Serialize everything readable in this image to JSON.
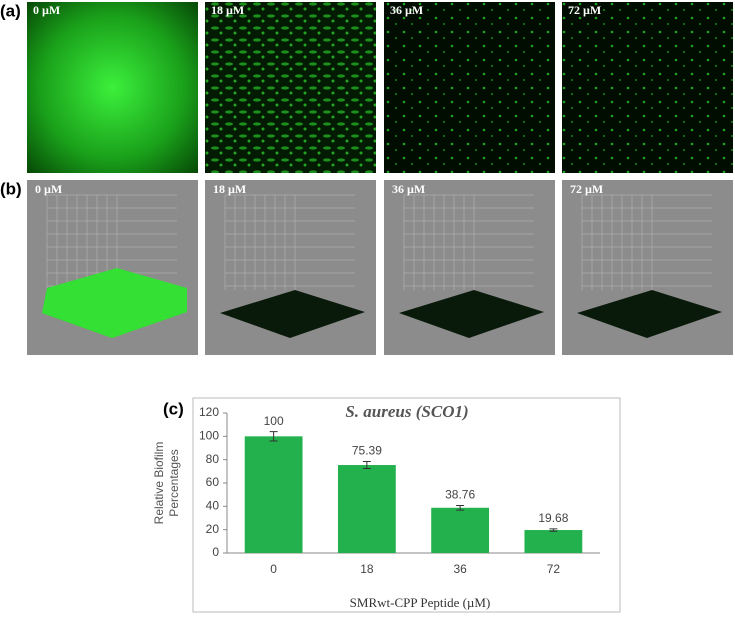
{
  "figure": {
    "panel_labels": [
      "(a)",
      "(b)",
      "(c)"
    ],
    "images_a": [
      "0 µM",
      "18 µM",
      "36 µM",
      "72 µM"
    ],
    "images_b": [
      "0 µM",
      "18 µM",
      "36 µM",
      "72 µM"
    ]
  },
  "chart_data": {
    "type": "bar",
    "title": "S. aureus (SCO1)",
    "y_label": [
      "Relative Biofilm",
      "Percentages"
    ],
    "x_label": "SMRwt-CPP  Peptide  (µM)",
    "categories": [
      "0",
      "18",
      "36",
      "72"
    ],
    "values": [
      100,
      75.39,
      38.76,
      19.68
    ],
    "errors": [
      4,
      3,
      2,
      1
    ],
    "color": "#22b14c",
    "ylim": [
      0,
      120
    ],
    "yticks": [
      0,
      20,
      40,
      60,
      80,
      100,
      120
    ]
  }
}
